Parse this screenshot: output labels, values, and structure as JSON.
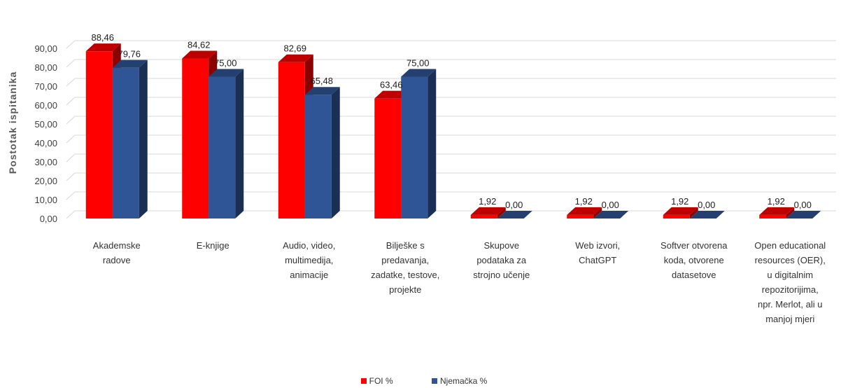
{
  "chart_data": {
    "type": "bar",
    "ylabel": "Postotak ispitanika",
    "ylim": [
      0,
      90
    ],
    "yticks": [
      "0,00",
      "10,00",
      "20,00",
      "30,00",
      "40,00",
      "50,00",
      "60,00",
      "70,00",
      "80,00",
      "90,00"
    ],
    "grid": true,
    "legend_position": "bottom",
    "categories": [
      "Akademske\nradove",
      "E-knjige",
      "Audio, video,\nmultimedija,\nanimacije",
      "Bilješke s\npredavanja,\nzadatke, testove,\nprojekte",
      "Skupove\npodataka za\nstrojno učenje",
      "Web izvori,\nChatGPT",
      "Softver otvorena\nkoda, otvorene\ndatasetove",
      "Open educational\nresources (OER),\nu digitalnim\nrepozitorijima,\nnpr. Merlot, ali u\nmanjoj mjeri"
    ],
    "series": [
      {
        "name": "FOI %",
        "color": "#ff0000",
        "values": [
          88.46,
          84.62,
          82.69,
          63.46,
          1.92,
          1.92,
          1.92,
          1.92
        ],
        "labels": [
          "88,46",
          "84,62",
          "82,69",
          "63,46",
          "1,92",
          "1,92",
          "1,92",
          "1,92"
        ]
      },
      {
        "name": "Njemačka %",
        "color": "#2f5597",
        "values": [
          79.76,
          75.0,
          65.48,
          75.0,
          0.0,
          0.0,
          0.0,
          0.0
        ],
        "labels": [
          "79,76",
          "75,00",
          "65,48",
          "75,00",
          "0,00",
          "0,00",
          "0,00",
          "0,00"
        ]
      }
    ]
  }
}
